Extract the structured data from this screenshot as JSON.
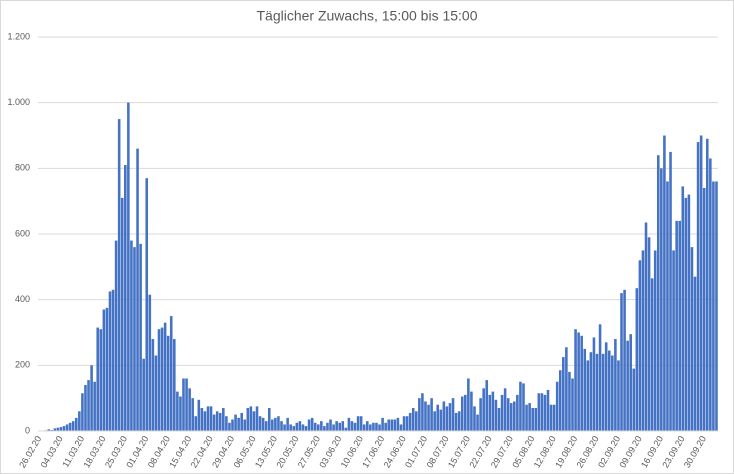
{
  "chart_data": {
    "type": "bar",
    "title": "Täglicher Zuwachs, 15:00 bis 15:00",
    "color": "#4472c4",
    "grid": true,
    "ylim": [
      0,
      1200
    ],
    "yticks": [
      0,
      200,
      400,
      600,
      800,
      {
        "value": 1000,
        "label": "1.000"
      },
      {
        "value": 1200,
        "label": "1.200"
      }
    ],
    "categories": [
      "26.02.20",
      null,
      null,
      null,
      null,
      null,
      null,
      "04.03.20",
      null,
      null,
      null,
      null,
      null,
      null,
      "11.03.20",
      null,
      null,
      null,
      null,
      null,
      null,
      "18.03.20",
      null,
      null,
      null,
      null,
      null,
      null,
      "25.03.20",
      null,
      null,
      null,
      null,
      null,
      null,
      "01.04.20",
      null,
      null,
      null,
      null,
      null,
      null,
      "08.04.20",
      null,
      null,
      null,
      null,
      null,
      null,
      "15.04.20",
      null,
      null,
      null,
      null,
      null,
      null,
      "22.04.20",
      null,
      null,
      null,
      null,
      null,
      null,
      "29.04.20",
      null,
      null,
      null,
      null,
      null,
      null,
      "06.05.20",
      null,
      null,
      null,
      null,
      null,
      null,
      "13.05.20",
      null,
      null,
      null,
      null,
      null,
      null,
      "20.05.20",
      null,
      null,
      null,
      null,
      null,
      null,
      "27.05.20",
      null,
      null,
      null,
      null,
      null,
      null,
      "03.06.20",
      null,
      null,
      null,
      null,
      null,
      null,
      "10.06.20",
      null,
      null,
      null,
      null,
      null,
      null,
      "17.06.20",
      null,
      null,
      null,
      null,
      null,
      null,
      "24.06.20",
      null,
      null,
      null,
      null,
      null,
      null,
      "01.07.20",
      null,
      null,
      null,
      null,
      null,
      null,
      "08.07.20",
      null,
      null,
      null,
      null,
      null,
      null,
      "15.07.20",
      null,
      null,
      null,
      null,
      null,
      null,
      "22.07.20",
      null,
      null,
      null,
      null,
      null,
      null,
      "29.07.20",
      null,
      null,
      null,
      null,
      null,
      null,
      "05.08.20",
      null,
      null,
      null,
      null,
      null,
      null,
      "12.08.20",
      null,
      null,
      null,
      null,
      null,
      null,
      "19.08.20",
      null,
      null,
      null,
      null,
      null,
      null,
      "26.08.20",
      null,
      null,
      null,
      null,
      null,
      null,
      "02.09.20",
      null,
      null,
      null,
      null,
      null,
      null,
      "09.09.20",
      null,
      null,
      null,
      null,
      null,
      null,
      "16.09.20",
      null,
      null,
      null,
      null,
      null,
      null,
      "23.09.20",
      null,
      null,
      null,
      null,
      null,
      null,
      "30.09.20",
      null,
      null,
      null,
      null
    ],
    "values": [
      0,
      0,
      2,
      5,
      3,
      8,
      10,
      12,
      15,
      20,
      25,
      30,
      40,
      60,
      115,
      140,
      155,
      200,
      150,
      315,
      310,
      370,
      375,
      425,
      430,
      580,
      950,
      710,
      810,
      1000,
      580,
      560,
      860,
      570,
      220,
      770,
      415,
      280,
      230,
      310,
      315,
      330,
      290,
      350,
      280,
      120,
      105,
      160,
      160,
      130,
      100,
      45,
      95,
      70,
      60,
      75,
      75,
      50,
      60,
      55,
      70,
      45,
      25,
      35,
      50,
      40,
      55,
      35,
      70,
      75,
      60,
      75,
      45,
      40,
      30,
      70,
      35,
      40,
      45,
      30,
      20,
      40,
      20,
      15,
      25,
      30,
      20,
      15,
      35,
      40,
      25,
      20,
      30,
      15,
      25,
      35,
      20,
      30,
      25,
      30,
      10,
      40,
      30,
      25,
      45,
      45,
      20,
      30,
      20,
      25,
      25,
      20,
      40,
      25,
      35,
      35,
      35,
      40,
      20,
      45,
      45,
      55,
      70,
      60,
      100,
      115,
      90,
      80,
      100,
      60,
      80,
      65,
      90,
      75,
      85,
      100,
      55,
      60,
      105,
      110,
      160,
      120,
      75,
      50,
      100,
      130,
      155,
      110,
      120,
      95,
      70,
      110,
      130,
      100,
      85,
      90,
      110,
      150,
      145,
      80,
      85,
      70,
      70,
      115,
      115,
      110,
      125,
      80,
      80,
      150,
      185,
      225,
      255,
      180,
      160,
      310,
      300,
      290,
      250,
      215,
      240,
      285,
      235,
      325,
      235,
      270,
      245,
      230,
      280,
      215,
      420,
      430,
      275,
      295,
      190,
      435,
      520,
      550,
      635,
      590,
      465,
      550,
      840,
      800,
      900,
      760,
      850,
      550,
      640,
      640,
      745,
      710,
      720,
      560,
      470,
      880,
      900,
      740,
      890,
      830,
      760,
      760
    ]
  }
}
